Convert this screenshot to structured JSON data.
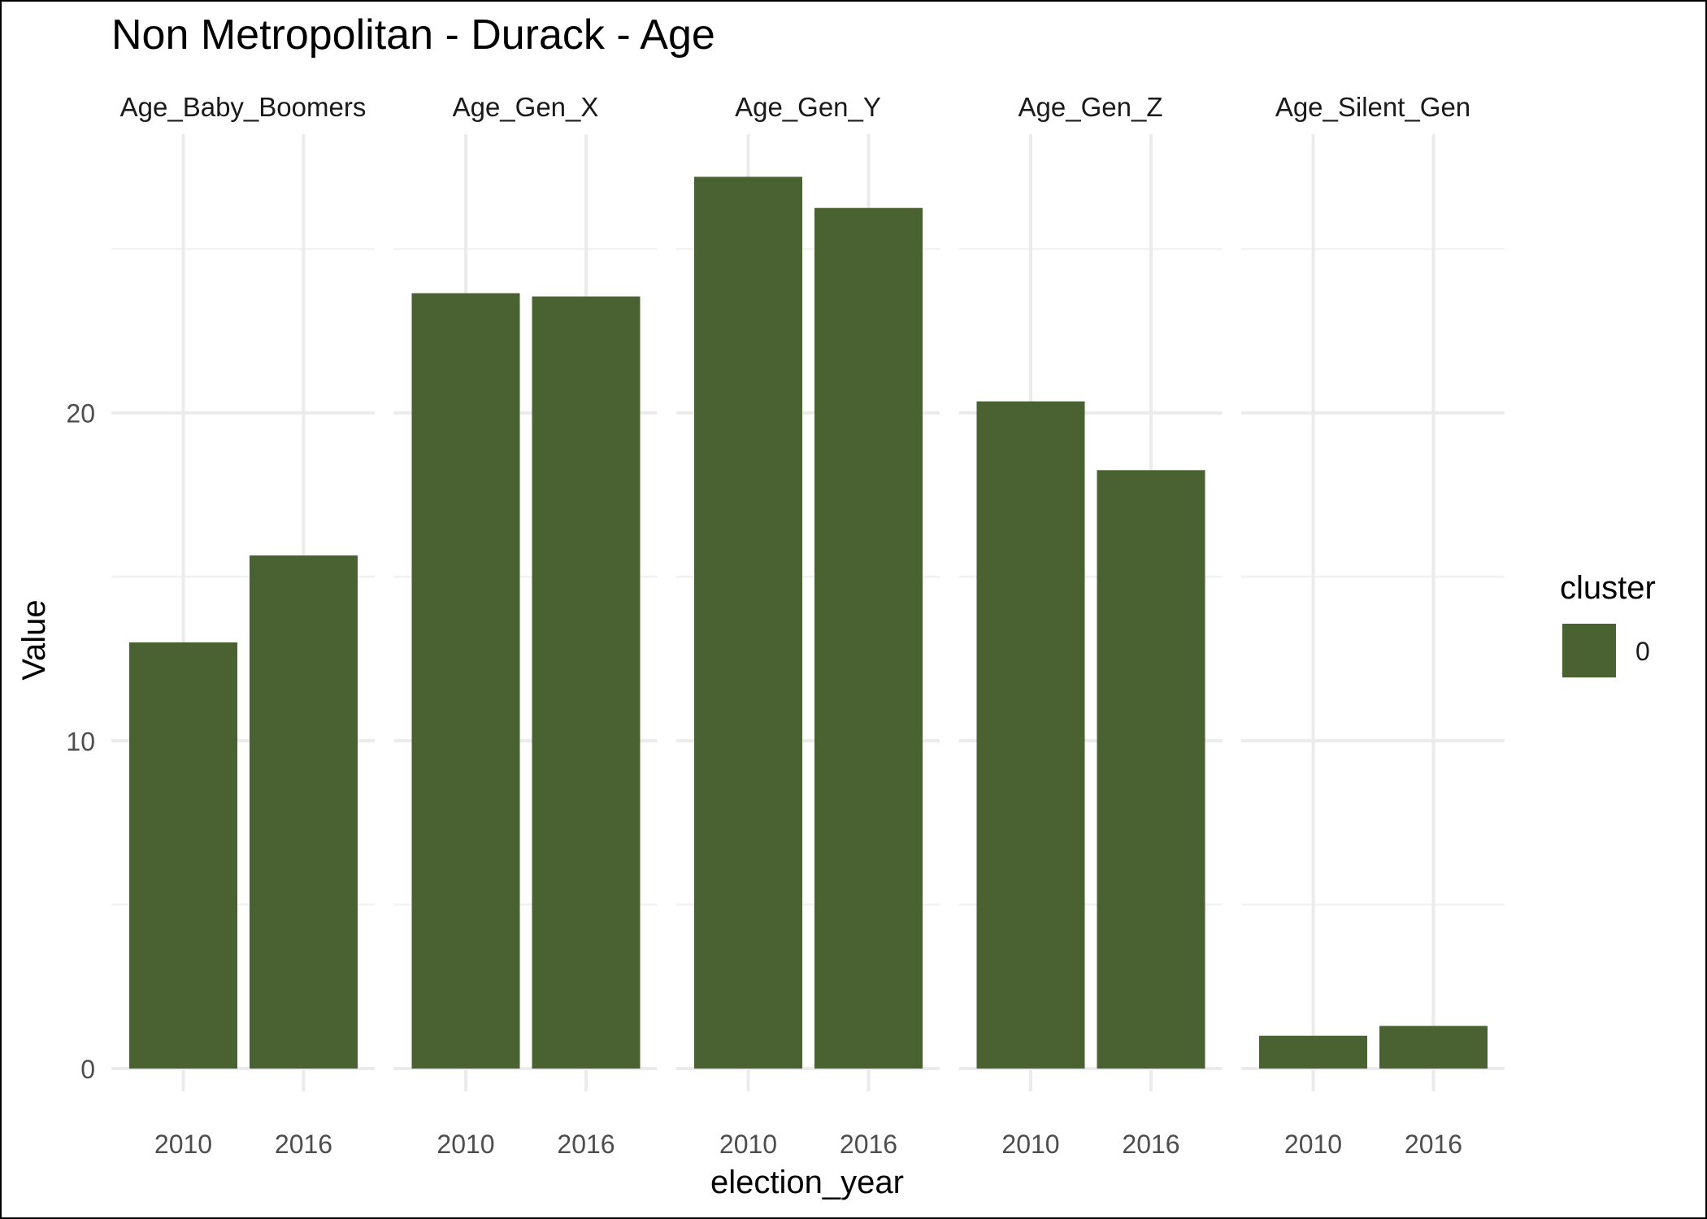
{
  "chart_data": {
    "type": "bar",
    "title": "Non Metropolitan - Durack - Age",
    "xlabel": "election_year",
    "ylabel": "Value",
    "ylim": [
      0,
      28.5
    ],
    "yticks": [
      0,
      10,
      20
    ],
    "grid": true,
    "legend": {
      "title": "cluster",
      "position": "right",
      "entries": [
        {
          "label": "0",
          "color": "#4a6132"
        }
      ]
    },
    "bar_color": "#4a6132",
    "x_categories": [
      "2010",
      "2016"
    ],
    "facets": [
      {
        "label": "Age_Baby_Boomers",
        "values": [
          13.0,
          15.65
        ]
      },
      {
        "label": "Age_Gen_X",
        "values": [
          23.65,
          23.55
        ]
      },
      {
        "label": "Age_Gen_Y",
        "values": [
          27.2,
          26.25
        ]
      },
      {
        "label": "Age_Gen_Z",
        "values": [
          20.35,
          18.25
        ]
      },
      {
        "label": "Age_Silent_Gen",
        "values": [
          1.0,
          1.3
        ]
      }
    ]
  }
}
